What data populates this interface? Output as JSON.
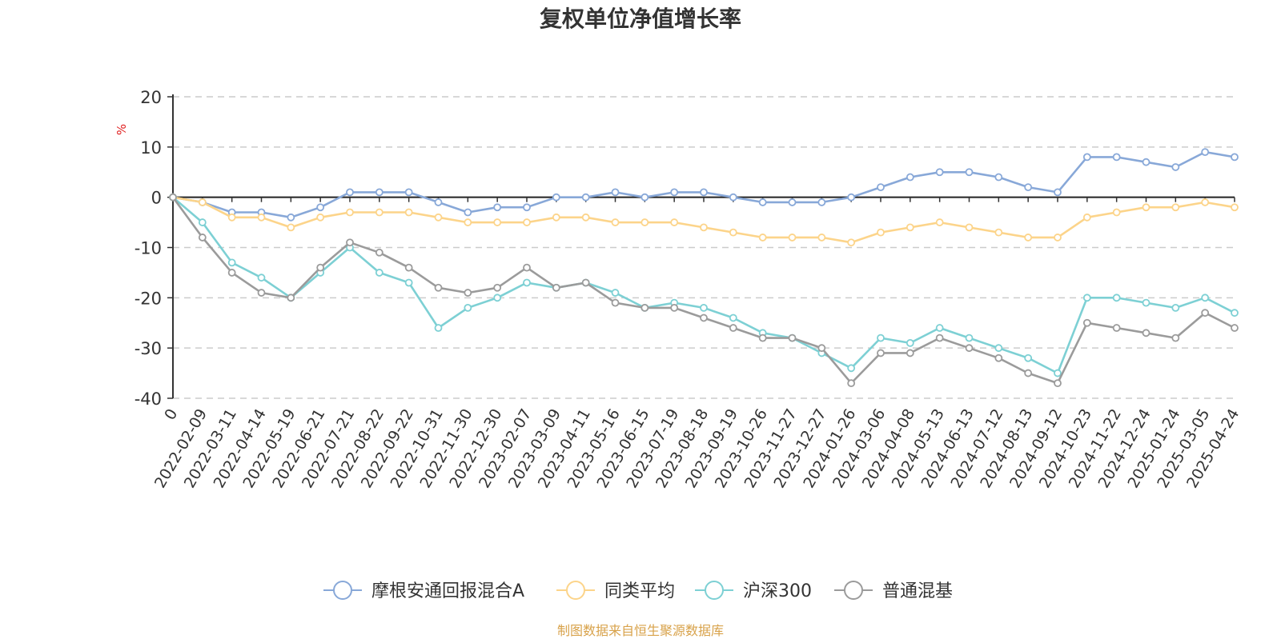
{
  "chart_data": {
    "type": "line",
    "title": "复权单位净值增长率",
    "ylabel": "%",
    "ylim": [
      -40,
      20
    ],
    "yticks": [
      20,
      10,
      0,
      -10,
      -20,
      -30,
      -40
    ],
    "grid": "horizontal dashed",
    "legend_position": "bottom",
    "x_tick_labels": [
      "0",
      "2022-02-09",
      "2022-03-11",
      "2022-04-14",
      "2022-05-19",
      "2022-06-21",
      "2022-07-21",
      "2022-08-22",
      "2022-09-22",
      "2022-10-31",
      "2022-11-30",
      "2022-12-30",
      "2023-02-07",
      "2023-03-09",
      "2023-04-11",
      "2023-05-16",
      "2023-06-15",
      "2023-07-19",
      "2023-08-18",
      "2023-09-19",
      "2023-10-26",
      "2023-11-27",
      "2023-12-27",
      "2024-01-26",
      "2024-03-06",
      "2024-04-08",
      "2024-05-13",
      "2024-06-13",
      "2024-07-12",
      "2024-08-13",
      "2024-09-12",
      "2024-10-23",
      "2024-11-22",
      "2024-12-24",
      "2025-01-24",
      "2025-03-05",
      "2025-04-24"
    ],
    "series": [
      {
        "name": "摩根安通回报混合A",
        "color": "#88a8d8",
        "values": [
          0,
          -1,
          -3,
          -3,
          -4,
          -2,
          1,
          1,
          1,
          -1,
          -3,
          -2,
          -2,
          0,
          0,
          1,
          0,
          1,
          1,
          0,
          -1,
          -1,
          -1,
          0,
          2,
          4,
          5,
          5,
          4,
          2,
          1,
          8,
          8,
          7,
          6,
          9,
          8
        ]
      },
      {
        "name": "同类平均",
        "color": "#fcd48a",
        "values": [
          0,
          -1,
          -4,
          -4,
          -6,
          -4,
          -3,
          -3,
          -3,
          -4,
          -5,
          -5,
          -5,
          -4,
          -4,
          -5,
          -5,
          -5,
          -6,
          -7,
          -8,
          -8,
          -8,
          -9,
          -7,
          -6,
          -5,
          -6,
          -7,
          -8,
          -8,
          -4,
          -3,
          -2,
          -2,
          -1,
          -2
        ]
      },
      {
        "name": "沪深300",
        "color": "#7dd0d4",
        "values": [
          0,
          -5,
          -13,
          -16,
          -20,
          -15,
          -10,
          -15,
          -17,
          -26,
          -22,
          -20,
          -17,
          -18,
          -17,
          -19,
          -22,
          -21,
          -22,
          -24,
          -27,
          -28,
          -31,
          -34,
          -28,
          -29,
          -26,
          -28,
          -30,
          -32,
          -35,
          -20,
          -20,
          -21,
          -22,
          -20,
          -23
        ]
      },
      {
        "name": "普通混基",
        "color": "#9b9b9b",
        "values": [
          0,
          -8,
          -15,
          -19,
          -20,
          -14,
          -9,
          -11,
          -14,
          -18,
          -19,
          -18,
          -14,
          -18,
          -17,
          -21,
          -22,
          -22,
          -24,
          -26,
          -28,
          -28,
          -30,
          -37,
          -31,
          -31,
          -28,
          -30,
          -32,
          -35,
          -37,
          -25,
          -26,
          -27,
          -28,
          -23,
          -26
        ]
      }
    ]
  },
  "footer": {
    "source": "制图数据来自恒生聚源数据库"
  }
}
